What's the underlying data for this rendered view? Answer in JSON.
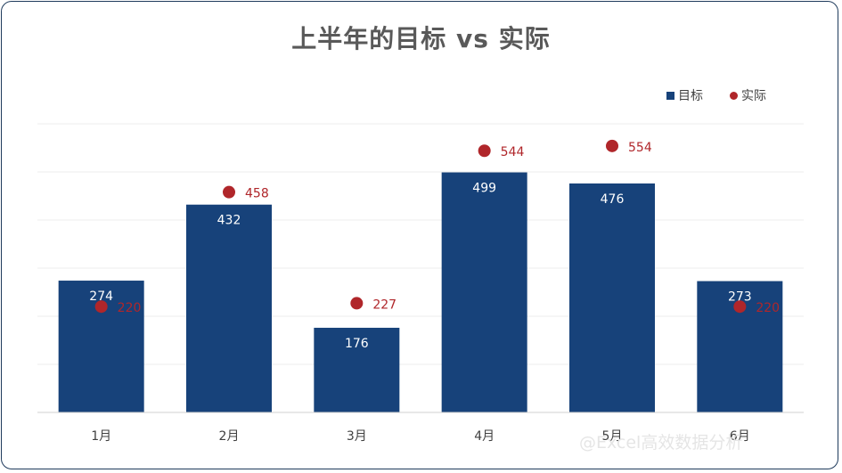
{
  "chart_data": {
    "type": "bar",
    "title": "上半年的目标 vs 实际",
    "categories": [
      "1月",
      "2月",
      "3月",
      "4月",
      "5月",
      "6月"
    ],
    "series": [
      {
        "name": "目标",
        "type": "bar",
        "values": [
          274,
          432,
          176,
          499,
          476,
          273
        ],
        "color": "#17427a"
      },
      {
        "name": "实际",
        "type": "scatter",
        "values": [
          220,
          458,
          227,
          544,
          554,
          220
        ],
        "color": "#b0262a"
      }
    ],
    "ylim": [
      0,
      600
    ],
    "grid": true,
    "legend_position": "top-right"
  },
  "watermark": "@Excel高效数据分析"
}
